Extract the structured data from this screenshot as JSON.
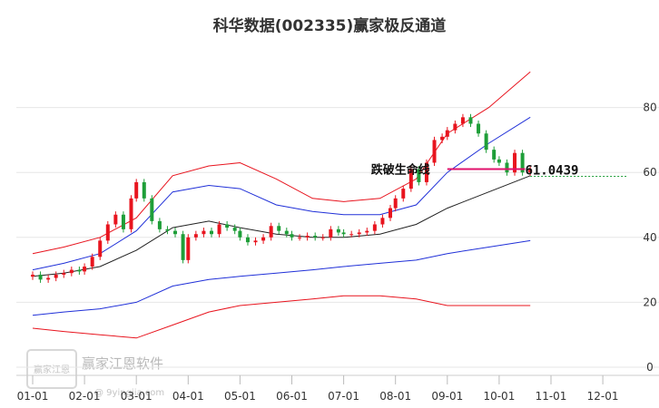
{
  "chart_data": {
    "type": "candlestick",
    "title": "科华数据(002335)赢家极反通道",
    "y_ticks": [
      "0",
      "20",
      "40",
      "60",
      "80"
    ],
    "y_tick_values": [
      0,
      20,
      40,
      60,
      80
    ],
    "ylim": [
      0,
      86
    ],
    "x_ticks": [
      "01-01",
      "02-01",
      "03-01",
      "04-01",
      "05-01",
      "06-01",
      "07-01",
      "08-01",
      "09-01",
      "10-01",
      "11-01",
      "12-01"
    ],
    "grid": "horizontal",
    "annotation": {
      "label": "跌破生命线",
      "value": "61.0439",
      "level": 61.0439
    },
    "watermark": {
      "text": "赢家江恩软件",
      "url": "@ 9yingjia.com",
      "logo_text": "赢家江恩"
    },
    "colors": {
      "up": "#e8141e",
      "down": "#1e9e38",
      "outer_band": "#e8141e",
      "inner_band": "#2030d8",
      "life_line": "#222222",
      "annotation_line": "#e0106b"
    },
    "series": [
      {
        "name": "",
        "type": "candle_close",
        "x_month": [
          0.0,
          0.15,
          0.3,
          0.45,
          0.6,
          0.75,
          0.9,
          1.0,
          1.15,
          1.3,
          1.45,
          1.6,
          1.75,
          1.9,
          2.0,
          2.15,
          2.3,
          2.45,
          2.6,
          2.75,
          2.9,
          3.0,
          3.15,
          3.3,
          3.45,
          3.6,
          3.75,
          3.9,
          4.0,
          4.15,
          4.3,
          4.45,
          4.6,
          4.75,
          4.9,
          5.0,
          5.15,
          5.3,
          5.45,
          5.6,
          5.75,
          5.9,
          6.0,
          6.15,
          6.3,
          6.45,
          6.6,
          6.75,
          6.9,
          7.0,
          7.15,
          7.3,
          7.45,
          7.6,
          7.75,
          7.9,
          8.0,
          8.15,
          8.3,
          8.45,
          8.6,
          8.75,
          8.9,
          9.0,
          9.15,
          9.3,
          9.45,
          9.6
        ],
        "values": [
          28.5,
          27.0,
          27.5,
          28.5,
          29.0,
          30.0,
          29.5,
          31.0,
          34.0,
          39.0,
          44.0,
          47.0,
          42.5,
          52.0,
          57.0,
          52.0,
          45.0,
          42.5,
          42.0,
          41.0,
          33.0,
          40.0,
          41.0,
          42.0,
          41.0,
          44.0,
          43.0,
          42.0,
          40.0,
          38.5,
          39.0,
          40.0,
          43.5,
          42.0,
          41.0,
          40.0,
          40.0,
          40.5,
          40.0,
          40.0,
          42.5,
          41.5,
          41.0,
          41.0,
          41.5,
          42.0,
          44.0,
          46.0,
          49.0,
          52.0,
          55.0,
          61.0,
          57.0,
          63.0,
          70.0,
          71.0,
          73.0,
          75.0,
          77.0,
          75.0,
          72.0,
          67.0,
          64.0,
          63.0,
          60.0,
          66.0,
          60.0,
          61.0
        ]
      },
      {
        "name": "",
        "type": "band",
        "values": [
          35.0,
          37.0,
          40.0,
          46.0,
          59.0,
          62.0,
          63.0,
          58.0,
          52.0,
          51.0,
          52.0,
          58.0,
          72.0,
          80.0,
          91.0
        ]
      },
      {
        "name": "",
        "type": "band",
        "values": [
          30.0,
          32.0,
          35.0,
          42.0,
          54.0,
          56.0,
          55.0,
          50.0,
          48.0,
          47.0,
          47.0,
          50.0,
          60.0,
          69.0,
          77.0
        ]
      },
      {
        "name": "",
        "type": "band",
        "values": [
          16.0,
          17.0,
          18.0,
          20.0,
          25.0,
          27.0,
          28.0,
          29.0,
          30.0,
          31.0,
          32.0,
          33.0,
          35.0,
          37.0,
          39.0
        ]
      },
      {
        "name": "",
        "type": "band",
        "values": [
          12.0,
          11.0,
          10.0,
          9.0,
          13.0,
          17.0,
          19.0,
          20.0,
          21.0,
          22.0,
          22.0,
          21.0,
          19.0,
          19.0,
          19.0
        ]
      },
      {
        "name": "",
        "type": "life_line",
        "values": [
          28.0,
          29.0,
          31.0,
          36.0,
          43.0,
          45.0,
          43.0,
          41.0,
          40.0,
          40.0,
          41.0,
          44.0,
          49.0,
          54.0,
          59.0
        ]
      }
    ],
    "band_x_month": [
      0.0,
      0.6,
      1.3,
      2.0,
      2.7,
      3.4,
      4.0,
      4.7,
      5.4,
      6.0,
      6.7,
      7.4,
      8.0,
      8.8,
      9.6
    ]
  }
}
